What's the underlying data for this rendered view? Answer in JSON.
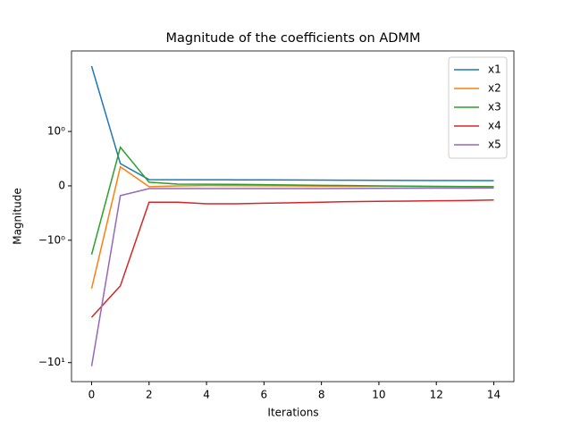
{
  "chart_data": {
    "type": "line",
    "title": "Magnitude of the coefficients on ADMM",
    "x_label": "Iterations",
    "y_label": "Magnitude",
    "x": [
      0,
      1,
      2,
      3,
      4,
      5,
      6,
      7,
      8,
      9,
      10,
      11,
      12,
      13,
      14
    ],
    "series": [
      {
        "name": "x1",
        "color": "#1f77b4",
        "values": [
          3.42,
          0.41,
          0.115,
          0.113,
          0.112,
          0.111,
          0.11,
          0.108,
          0.106,
          0.104,
          0.102,
          0.1,
          0.098,
          0.097,
          0.095
        ]
      },
      {
        "name": "x2",
        "color": "#ff7f0e",
        "values": [
          -2.48,
          0.35,
          -0.016,
          0.0,
          0.005,
          0.004,
          0.002,
          0.0,
          -0.005,
          -0.008,
          -0.01,
          -0.012,
          -0.014,
          -0.015,
          -0.016
        ]
      },
      {
        "name": "x3",
        "color": "#2ca02c",
        "values": [
          -1.31,
          0.71,
          0.066,
          0.033,
          0.03,
          0.028,
          0.022,
          0.016,
          0.01,
          0.005,
          0.0,
          -0.005,
          -0.01,
          -0.013,
          -0.016
        ]
      },
      {
        "name": "x4",
        "color": "#d62728",
        "values": [
          -4.26,
          -2.36,
          -0.3,
          -0.3,
          -0.33,
          -0.33,
          -0.32,
          -0.31,
          -0.3,
          -0.29,
          -0.285,
          -0.28,
          -0.275,
          -0.27,
          -0.26
        ]
      },
      {
        "name": "x5",
        "color": "#9467bd",
        "values": [
          -10.7,
          -0.18,
          -0.05,
          -0.05,
          -0.05,
          -0.05,
          -0.05,
          -0.05,
          -0.05,
          -0.048,
          -0.046,
          -0.044,
          -0.042,
          -0.041,
          -0.04
        ]
      }
    ],
    "xlim": [
      -0.7,
      14.7
    ],
    "ylim": [
      -14.3,
      4.55
    ],
    "xticks": [
      0,
      2,
      4,
      6,
      8,
      10,
      12,
      14
    ],
    "yticks": [
      {
        "value": 1,
        "label": "10⁰"
      },
      0,
      {
        "value": -1,
        "label": "−10⁰"
      },
      {
        "value": -10,
        "label": "−10¹"
      }
    ],
    "yscale": {
      "type": "symlog",
      "linthresh": 1,
      "linscale": 0.4
    },
    "legend": "upper right"
  }
}
